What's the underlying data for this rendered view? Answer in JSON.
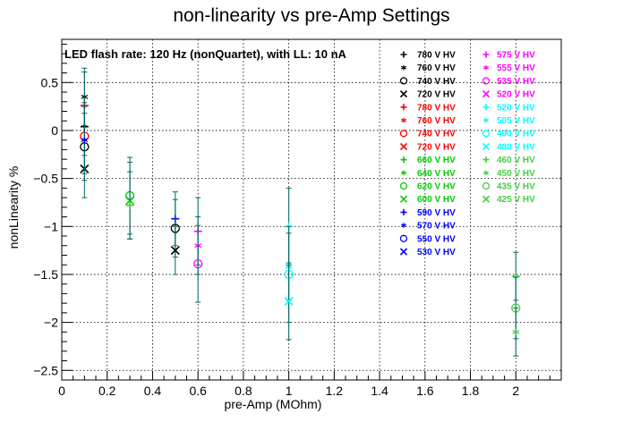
{
  "chart_data": {
    "type": "scatter",
    "title": "non-linearity vs pre-Amp Settings",
    "xlabel": "pre-Amp (MOhm)",
    "ylabel": "nonLinearity %",
    "header_note": "LED flash rate: 120 Hz  (nonQuartet), with LL: 10 nA",
    "xlim": [
      0,
      2.2
    ],
    "ylim": [
      -2.6,
      0.95
    ],
    "x_ticks": [
      "0",
      "0.2",
      "0.4",
      "0.6",
      "0.8",
      "1",
      "1.2",
      "1.4",
      "1.6",
      "1.8",
      "2"
    ],
    "y_ticks": [
      "0.5",
      "0",
      "−0.5",
      "−1",
      "−1.5",
      "−2",
      "−2.5"
    ],
    "grid": true,
    "legend_position": "top-right",
    "legend": [
      {
        "label": "780 V HV",
        "marker": "plus",
        "color": "#000000"
      },
      {
        "label": "760 V HV",
        "marker": "star",
        "color": "#000000"
      },
      {
        "label": "740 V HV",
        "marker": "circle",
        "color": "#000000"
      },
      {
        "label": "720 V HV",
        "marker": "cross",
        "color": "#000000"
      },
      {
        "label": "780 V HV",
        "marker": "plus",
        "color": "#ff0000"
      },
      {
        "label": "760 V HV",
        "marker": "star",
        "color": "#ff0000"
      },
      {
        "label": "740 V HV",
        "marker": "circle",
        "color": "#ff0000"
      },
      {
        "label": "720 V HV",
        "marker": "cross",
        "color": "#ff0000"
      },
      {
        "label": "660 V HV",
        "marker": "plus",
        "color": "#00cc00"
      },
      {
        "label": "640 V HV",
        "marker": "star",
        "color": "#00cc00"
      },
      {
        "label": "620 V HV",
        "marker": "circle",
        "color": "#00cc00"
      },
      {
        "label": "600 V HV",
        "marker": "cross",
        "color": "#00cc00"
      },
      {
        "label": "590 V HV",
        "marker": "plus",
        "color": "#0000ff"
      },
      {
        "label": "570 V HV",
        "marker": "star",
        "color": "#0000ff"
      },
      {
        "label": "550 V HV",
        "marker": "circle",
        "color": "#0000ff"
      },
      {
        "label": "530 V HV",
        "marker": "cross",
        "color": "#0000ff"
      },
      {
        "label": "575 V HV",
        "marker": "plus",
        "color": "#ff00ff"
      },
      {
        "label": "555 V HV",
        "marker": "star",
        "color": "#ff00ff"
      },
      {
        "label": "535 V HV",
        "marker": "circle",
        "color": "#ff00ff"
      },
      {
        "label": "520 V HV",
        "marker": "cross",
        "color": "#ff00ff"
      },
      {
        "label": "520 V HV",
        "marker": "plus",
        "color": "#00ffff"
      },
      {
        "label": "505 V HV",
        "marker": "star",
        "color": "#00ffff"
      },
      {
        "label": "490 V HV",
        "marker": "circle",
        "color": "#00ffff"
      },
      {
        "label": "480 V HV",
        "marker": "cross",
        "color": "#00ffff"
      },
      {
        "label": "460 V HV",
        "marker": "plus",
        "color": "#44cc44"
      },
      {
        "label": "450 V HV",
        "marker": "star",
        "color": "#44cc44"
      },
      {
        "label": "435 V HV",
        "marker": "circle",
        "color": "#44cc44"
      },
      {
        "label": "425 V HV",
        "marker": "cross",
        "color": "#44cc44"
      }
    ],
    "error_bar_color": "#006666",
    "points": [
      {
        "x": 0.1,
        "y": 0.35,
        "err": 0.3,
        "marker": "star",
        "color": "#000000"
      },
      {
        "x": 0.1,
        "y": 0.04,
        "err": 0.3,
        "marker": "plus",
        "color": "#000000"
      },
      {
        "x": 0.1,
        "y": -0.17,
        "err": 0.35,
        "marker": "circle",
        "color": "#000000"
      },
      {
        "x": 0.1,
        "y": -0.4,
        "err": 0.3,
        "marker": "cross",
        "color": "#000000"
      },
      {
        "x": 0.1,
        "y": 0.26,
        "err": 0.35,
        "marker": "plus",
        "color": "#ff0000"
      },
      {
        "x": 0.1,
        "y": -0.06,
        "err": 0.35,
        "marker": "circle",
        "color": "#ff0000"
      },
      {
        "x": 0.1,
        "y": -0.1,
        "err": 0.35,
        "marker": "star",
        "color": "#0000ff"
      },
      {
        "x": 0.3,
        "y": -0.68,
        "err": 0.4,
        "marker": "circle",
        "color": "#00cc00"
      },
      {
        "x": 0.3,
        "y": -0.73,
        "err": 0.4,
        "marker": "cross",
        "color": "#00cc00"
      },
      {
        "x": 0.3,
        "y": -0.78,
        "err": 0.35,
        "marker": "plus",
        "color": "#44cc44"
      },
      {
        "x": 0.5,
        "y": -0.92,
        "err": 0.28,
        "marker": "plus",
        "color": "#0000ff"
      },
      {
        "x": 0.5,
        "y": -1.02,
        "err": 0.3,
        "marker": "circle",
        "color": "#000000"
      },
      {
        "x": 0.5,
        "y": -1.25,
        "err": 0.25,
        "marker": "cross",
        "color": "#000000"
      },
      {
        "x": 0.6,
        "y": -1.05,
        "err": 0.35,
        "marker": "plus",
        "color": "#ff00ff"
      },
      {
        "x": 0.6,
        "y": -1.2,
        "err": 0.3,
        "marker": "star",
        "color": "#ff00ff"
      },
      {
        "x": 0.6,
        "y": -1.39,
        "err": 0.4,
        "marker": "circle",
        "color": "#ff00ff"
      },
      {
        "x": 1.0,
        "y": -1.0,
        "err": 0.4,
        "marker": "plus",
        "color": "#00ffff"
      },
      {
        "x": 1.0,
        "y": -1.42,
        "err": 0.35,
        "marker": "star",
        "color": "#00ffff"
      },
      {
        "x": 1.0,
        "y": -1.5,
        "err": 0.5,
        "marker": "circle",
        "color": "#00ffff"
      },
      {
        "x": 1.0,
        "y": -1.78,
        "err": 0.4,
        "marker": "cross",
        "color": "#00ffff"
      },
      {
        "x": 2.0,
        "y": -1.52,
        "err": 0.25,
        "marker": "plus",
        "color": "#44cc44"
      },
      {
        "x": 2.0,
        "y": -1.85,
        "err": 0.32,
        "marker": "circle",
        "color": "#44cc44"
      },
      {
        "x": 2.0,
        "y": -2.1,
        "err": 0.25,
        "marker": "star",
        "color": "#44cc44"
      }
    ]
  }
}
